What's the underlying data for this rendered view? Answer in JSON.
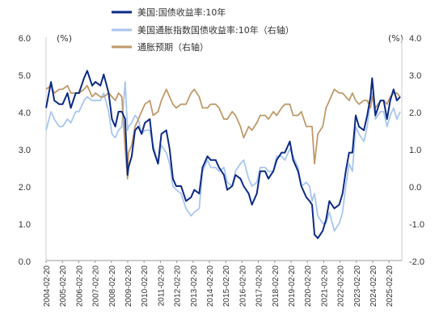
{
  "chart_data": {
    "type": "line",
    "legend": [
      {
        "name": "美国:国债收益率:10年",
        "color": "#0d2a85",
        "axis": "left"
      },
      {
        "name": "美国通胀指数国债收益率:10年（右轴）",
        "color": "#a9c6ee",
        "axis": "right"
      },
      {
        "name": "通胀预期（右轴）",
        "color": "#c09a6a",
        "axis": "right"
      }
    ],
    "left_axis": {
      "unit": "(%)",
      "ylim": [
        0.0,
        6.0
      ],
      "ticks": [
        "0.0",
        "1.0",
        "2.0",
        "3.0",
        "4.0",
        "5.0",
        "6.0"
      ]
    },
    "right_axis": {
      "unit": "(%)",
      "ylim": [
        -2.0,
        4.0
      ],
      "ticks": [
        "-2.0",
        "-1.0",
        "0.0",
        "1.0",
        "2.0",
        "3.0",
        "4.0"
      ]
    },
    "x_tick_labels": [
      "2004-02-20",
      "2005-02-20",
      "2006-02-20",
      "2007-02-20",
      "2008-02-20",
      "2009-02-20",
      "2010-02-20",
      "2011-02-20",
      "2012-02-20",
      "2013-02-20",
      "2014-02-20",
      "2015-02-20",
      "2016-02-20",
      "2017-02-20",
      "2018-02-20",
      "2019-02-20",
      "2020-02-20",
      "2021-02-20",
      "2022-02-20",
      "2023-02-20",
      "2024-02-20",
      "2025-02-20"
    ],
    "x_range": [
      2004.0,
      2025.6
    ],
    "series": [
      {
        "name": "美国:国债收益率:10年",
        "axis": "left",
        "color": "#0d2a85",
        "x": [
          2004.0,
          2004.3,
          2004.5,
          2004.8,
          2005.0,
          2005.3,
          2005.5,
          2005.8,
          2006.0,
          2006.3,
          2006.5,
          2006.8,
          2007.0,
          2007.3,
          2007.5,
          2007.8,
          2008.0,
          2008.2,
          2008.4,
          2008.6,
          2008.8,
          2008.95,
          2009.0,
          2009.2,
          2009.4,
          2009.6,
          2009.8,
          2010.0,
          2010.3,
          2010.5,
          2010.8,
          2011.0,
          2011.3,
          2011.5,
          2011.7,
          2011.9,
          2012.2,
          2012.5,
          2012.8,
          2013.0,
          2013.3,
          2013.5,
          2013.8,
          2014.0,
          2014.3,
          2014.5,
          2014.8,
          2015.0,
          2015.3,
          2015.5,
          2015.8,
          2016.0,
          2016.3,
          2016.5,
          2016.8,
          2017.0,
          2017.3,
          2017.5,
          2017.8,
          2018.0,
          2018.3,
          2018.5,
          2018.8,
          2019.0,
          2019.3,
          2019.5,
          2019.8,
          2020.0,
          2020.15,
          2020.3,
          2020.5,
          2020.8,
          2021.0,
          2021.2,
          2021.5,
          2021.8,
          2022.0,
          2022.2,
          2022.4,
          2022.6,
          2022.8,
          2023.0,
          2023.3,
          2023.5,
          2023.7,
          2023.8,
          2024.0,
          2024.3,
          2024.5,
          2024.7,
          2024.9,
          2025.1,
          2025.3,
          2025.5
        ],
        "values": [
          4.1,
          4.8,
          4.3,
          4.2,
          4.2,
          4.5,
          4.1,
          4.5,
          4.5,
          4.9,
          5.1,
          4.7,
          4.8,
          4.7,
          5.0,
          4.5,
          3.8,
          3.6,
          4.0,
          4.0,
          3.8,
          2.3,
          2.5,
          2.8,
          3.5,
          3.6,
          3.4,
          3.7,
          3.8,
          3.0,
          2.6,
          3.4,
          3.5,
          3.0,
          2.2,
          2.0,
          2.0,
          1.6,
          1.7,
          1.9,
          1.8,
          2.5,
          2.8,
          2.7,
          2.7,
          2.5,
          2.3,
          1.9,
          2.0,
          2.3,
          2.2,
          2.0,
          1.8,
          1.5,
          1.8,
          2.4,
          2.4,
          2.2,
          2.4,
          2.7,
          2.9,
          2.9,
          3.2,
          2.7,
          2.4,
          2.0,
          1.7,
          1.6,
          1.5,
          0.7,
          0.6,
          0.8,
          1.1,
          1.6,
          1.4,
          1.5,
          1.8,
          2.4,
          2.9,
          2.9,
          3.9,
          3.6,
          3.5,
          3.9,
          4.4,
          4.9,
          3.9,
          4.3,
          4.3,
          3.8,
          4.3,
          4.6,
          4.3,
          4.4
        ]
      },
      {
        "name": "美国通胀指数国债收益率:10年（右轴）",
        "axis": "right",
        "color": "#a9c6ee",
        "x": [
          2004.0,
          2004.3,
          2004.5,
          2004.8,
          2005.0,
          2005.3,
          2005.5,
          2005.8,
          2006.0,
          2006.3,
          2006.5,
          2006.8,
          2007.0,
          2007.3,
          2007.5,
          2007.8,
          2008.0,
          2008.2,
          2008.4,
          2008.6,
          2008.8,
          2008.95,
          2009.0,
          2009.2,
          2009.4,
          2009.6,
          2009.8,
          2010.0,
          2010.3,
          2010.5,
          2010.8,
          2011.0,
          2011.3,
          2011.5,
          2011.7,
          2011.9,
          2012.2,
          2012.5,
          2012.8,
          2013.0,
          2013.3,
          2013.5,
          2013.8,
          2014.0,
          2014.3,
          2014.5,
          2014.8,
          2015.0,
          2015.3,
          2015.5,
          2015.8,
          2016.0,
          2016.3,
          2016.5,
          2016.8,
          2017.0,
          2017.3,
          2017.5,
          2017.8,
          2018.0,
          2018.3,
          2018.5,
          2018.8,
          2019.0,
          2019.3,
          2019.5,
          2019.8,
          2020.0,
          2020.15,
          2020.3,
          2020.5,
          2020.8,
          2021.0,
          2021.2,
          2021.5,
          2021.8,
          2022.0,
          2022.2,
          2022.4,
          2022.6,
          2022.8,
          2023.0,
          2023.3,
          2023.5,
          2023.7,
          2023.8,
          2024.0,
          2024.3,
          2024.5,
          2024.7,
          2024.9,
          2025.1,
          2025.3,
          2025.5
        ],
        "values": [
          1.5,
          2.0,
          1.8,
          1.6,
          1.6,
          1.8,
          1.7,
          2.0,
          2.0,
          2.3,
          2.4,
          2.3,
          2.3,
          2.3,
          2.5,
          2.0,
          1.4,
          1.3,
          1.5,
          1.6,
          2.8,
          1.5,
          1.6,
          1.7,
          1.9,
          1.8,
          1.4,
          1.5,
          1.5,
          1.1,
          0.6,
          1.1,
          0.9,
          0.6,
          0.0,
          -0.1,
          -0.2,
          -0.6,
          -0.8,
          -0.7,
          -0.6,
          0.4,
          0.7,
          0.5,
          0.5,
          0.4,
          0.5,
          0.1,
          0.0,
          0.4,
          0.6,
          0.7,
          0.2,
          0.0,
          0.1,
          0.5,
          0.5,
          0.4,
          0.4,
          0.8,
          0.8,
          0.7,
          1.0,
          0.8,
          0.5,
          0.0,
          0.1,
          0.0,
          -0.4,
          -0.2,
          -0.8,
          -1.0,
          -1.0,
          -0.7,
          -1.2,
          -1.0,
          -0.7,
          0.0,
          0.6,
          0.4,
          1.6,
          1.4,
          1.2,
          1.6,
          2.3,
          2.5,
          1.8,
          2.0,
          2.0,
          1.6,
          1.9,
          2.1,
          1.8,
          2.0
        ]
      },
      {
        "name": "通胀预期（右轴）",
        "axis": "right",
        "color": "#c09a6a",
        "x": [
          2004.0,
          2004.3,
          2004.5,
          2004.8,
          2005.0,
          2005.3,
          2005.5,
          2005.8,
          2006.0,
          2006.3,
          2006.5,
          2006.8,
          2007.0,
          2007.3,
          2007.5,
          2007.8,
          2008.0,
          2008.2,
          2008.4,
          2008.6,
          2008.8,
          2008.95,
          2009.0,
          2009.2,
          2009.4,
          2009.6,
          2009.8,
          2010.0,
          2010.3,
          2010.5,
          2010.8,
          2011.0,
          2011.3,
          2011.5,
          2011.7,
          2011.9,
          2012.2,
          2012.5,
          2012.8,
          2013.0,
          2013.3,
          2013.5,
          2013.8,
          2014.0,
          2014.3,
          2014.5,
          2014.8,
          2015.0,
          2015.3,
          2015.5,
          2015.8,
          2016.0,
          2016.3,
          2016.5,
          2016.8,
          2017.0,
          2017.3,
          2017.5,
          2017.8,
          2018.0,
          2018.3,
          2018.5,
          2018.8,
          2019.0,
          2019.3,
          2019.5,
          2019.8,
          2020.0,
          2020.15,
          2020.3,
          2020.5,
          2020.8,
          2021.0,
          2021.2,
          2021.5,
          2021.8,
          2022.0,
          2022.2,
          2022.4,
          2022.6,
          2022.8,
          2023.0,
          2023.3,
          2023.5,
          2023.7,
          2023.8,
          2024.0,
          2024.3,
          2024.5,
          2024.7,
          2024.9,
          2025.1,
          2025.3,
          2025.5
        ],
        "values": [
          2.6,
          2.7,
          2.5,
          2.6,
          2.6,
          2.7,
          2.5,
          2.5,
          2.5,
          2.6,
          2.7,
          2.4,
          2.5,
          2.4,
          2.4,
          2.5,
          2.4,
          2.3,
          2.5,
          2.4,
          1.0,
          0.2,
          0.9,
          1.1,
          1.6,
          1.8,
          2.0,
          2.2,
          2.3,
          1.9,
          2.0,
          2.3,
          2.6,
          2.4,
          2.2,
          2.1,
          2.2,
          2.2,
          2.5,
          2.6,
          2.4,
          2.1,
          2.1,
          2.2,
          2.2,
          2.1,
          1.8,
          1.8,
          2.0,
          1.9,
          1.6,
          1.3,
          1.6,
          1.5,
          1.7,
          1.9,
          1.9,
          1.8,
          2.0,
          1.9,
          2.1,
          2.2,
          2.2,
          1.9,
          1.9,
          2.0,
          1.6,
          1.6,
          1.6,
          0.6,
          1.4,
          1.6,
          2.1,
          2.3,
          2.6,
          2.5,
          2.5,
          2.4,
          2.3,
          2.5,
          2.3,
          2.2,
          2.3,
          2.3,
          2.1,
          2.4,
          2.1,
          2.3,
          2.3,
          2.2,
          2.4,
          2.5,
          2.5,
          2.4
        ]
      }
    ]
  }
}
